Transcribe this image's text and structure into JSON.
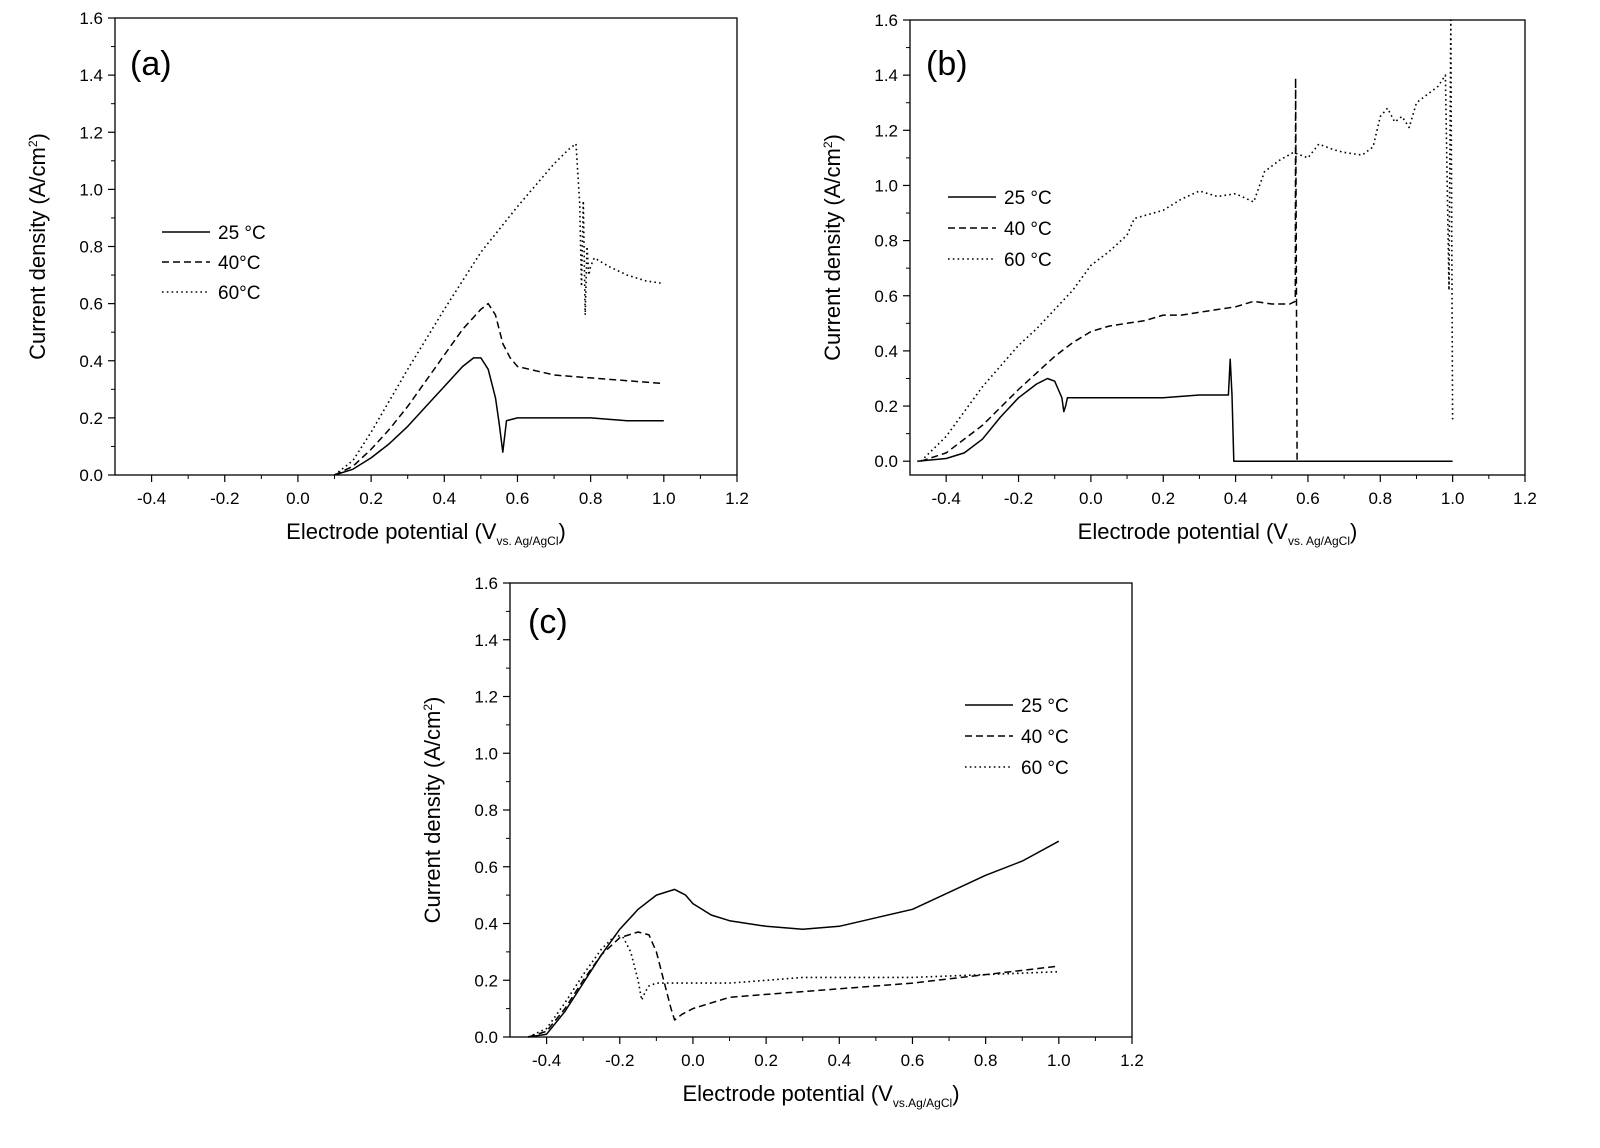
{
  "chart_data": [
    {
      "type": "line",
      "panel_label": "(a)",
      "xlabel": {
        "main": "Electrode potential (V",
        "sub": "vs. Ag/AgCl",
        "tail": ")"
      },
      "ylabel": {
        "main": "Current density (A/cm",
        "sup": "2",
        "tail": ")"
      },
      "xlim": [
        -0.5,
        1.2
      ],
      "ylim": [
        0,
        1.6
      ],
      "xticks": [
        "-0.4",
        "-0.2",
        "0.0",
        "0.2",
        "0.4",
        "0.6",
        "0.8",
        "1.0",
        "1.2"
      ],
      "yticks": [
        "0.0",
        "0.2",
        "0.4",
        "0.6",
        "0.8",
        "1.0",
        "1.2",
        "1.4",
        "1.6"
      ],
      "legend_position": "middle-left",
      "grid": false,
      "series": [
        {
          "name": "25 °C",
          "style": "solid",
          "x": [
            0.1,
            0.15,
            0.2,
            0.25,
            0.3,
            0.35,
            0.4,
            0.45,
            0.48,
            0.5,
            0.52,
            0.54,
            0.55,
            0.56,
            0.57,
            0.6,
            0.7,
            0.8,
            0.9,
            1.0
          ],
          "y": [
            0.0,
            0.02,
            0.06,
            0.11,
            0.17,
            0.24,
            0.31,
            0.38,
            0.41,
            0.41,
            0.37,
            0.27,
            0.18,
            0.08,
            0.19,
            0.2,
            0.2,
            0.2,
            0.19,
            0.19
          ]
        },
        {
          "name": "40°C",
          "style": "dashed",
          "x": [
            0.1,
            0.15,
            0.2,
            0.25,
            0.3,
            0.35,
            0.4,
            0.45,
            0.5,
            0.52,
            0.54,
            0.56,
            0.58,
            0.6,
            0.7,
            0.8,
            0.9,
            1.0
          ],
          "y": [
            0.0,
            0.03,
            0.09,
            0.16,
            0.24,
            0.33,
            0.42,
            0.51,
            0.58,
            0.6,
            0.56,
            0.46,
            0.41,
            0.38,
            0.35,
            0.34,
            0.33,
            0.32
          ]
        },
        {
          "name": "60°C",
          "style": "dotted",
          "x": [
            0.1,
            0.15,
            0.2,
            0.3,
            0.4,
            0.5,
            0.6,
            0.7,
            0.74,
            0.76,
            0.77,
            0.775,
            0.78,
            0.785,
            0.79,
            0.795,
            0.8,
            0.81,
            0.85,
            0.9,
            0.95,
            1.0
          ],
          "y": [
            0.0,
            0.05,
            0.15,
            0.37,
            0.58,
            0.78,
            0.94,
            1.09,
            1.14,
            1.16,
            0.95,
            0.66,
            0.96,
            0.56,
            0.8,
            0.7,
            0.73,
            0.76,
            0.73,
            0.7,
            0.68,
            0.67
          ]
        }
      ]
    },
    {
      "type": "line",
      "panel_label": "(b)",
      "xlabel": {
        "main": "Electrode potential (V",
        "sub": "vs. Ag/AgCl",
        "tail": ")"
      },
      "ylabel": {
        "main": "Current density (A/cm",
        "sup": "2",
        "tail": ")"
      },
      "xlim": [
        -0.5,
        1.2
      ],
      "ylim": [
        -0.05,
        1.6
      ],
      "xticks": [
        "-0.4",
        "-0.2",
        "0.0",
        "0.2",
        "0.4",
        "0.6",
        "0.8",
        "1.0",
        "1.2"
      ],
      "yticks": [
        "0.0",
        "0.2",
        "0.4",
        "0.6",
        "0.8",
        "1.0",
        "1.2",
        "1.4",
        "1.6"
      ],
      "legend_position": "middle-left",
      "grid": false,
      "series": [
        {
          "name": "25 °C",
          "style": "solid",
          "x": [
            -0.48,
            -0.4,
            -0.35,
            -0.3,
            -0.25,
            -0.2,
            -0.15,
            -0.12,
            -0.1,
            -0.09,
            -0.08,
            -0.075,
            -0.07,
            -0.065,
            -0.06,
            0.0,
            0.1,
            0.2,
            0.3,
            0.38,
            0.385,
            0.39,
            0.395,
            0.4,
            0.6,
            0.8,
            1.0
          ],
          "y": [
            0.0,
            0.01,
            0.03,
            0.08,
            0.16,
            0.23,
            0.28,
            0.3,
            0.29,
            0.26,
            0.23,
            0.18,
            0.2,
            0.23,
            0.23,
            0.23,
            0.23,
            0.23,
            0.24,
            0.24,
            0.37,
            0.24,
            0.0,
            0.0,
            0.0,
            0.0,
            0.0
          ]
        },
        {
          "name": "40 °C",
          "style": "dashed",
          "x": [
            -0.47,
            -0.4,
            -0.3,
            -0.2,
            -0.1,
            -0.05,
            0.0,
            0.05,
            0.1,
            0.15,
            0.2,
            0.25,
            0.3,
            0.35,
            0.4,
            0.45,
            0.5,
            0.55,
            0.565,
            0.566,
            0.57,
            0.575,
            0.58,
            0.6
          ],
          "y": [
            0.0,
            0.03,
            0.13,
            0.26,
            0.38,
            0.43,
            0.47,
            0.49,
            0.5,
            0.51,
            0.53,
            0.53,
            0.54,
            0.55,
            0.56,
            0.58,
            0.57,
            0.57,
            0.58,
            1.39,
            0.0,
            0.0,
            0.0,
            0.0
          ]
        },
        {
          "name": "60 °C",
          "style": "dotted",
          "x": [
            -0.47,
            -0.4,
            -0.3,
            -0.2,
            -0.15,
            -0.1,
            -0.05,
            0.0,
            0.05,
            0.1,
            0.12,
            0.2,
            0.25,
            0.3,
            0.35,
            0.4,
            0.45,
            0.48,
            0.52,
            0.56,
            0.6,
            0.63,
            0.67,
            0.7,
            0.75,
            0.78,
            0.8,
            0.82,
            0.84,
            0.86,
            0.88,
            0.9,
            0.93,
            0.96,
            0.98,
            0.99,
            0.995,
            1.0
          ],
          "y": [
            0.0,
            0.09,
            0.27,
            0.42,
            0.48,
            0.55,
            0.62,
            0.71,
            0.76,
            0.82,
            0.88,
            0.91,
            0.95,
            0.98,
            0.96,
            0.97,
            0.94,
            1.05,
            1.09,
            1.12,
            1.1,
            1.15,
            1.13,
            1.12,
            1.11,
            1.14,
            1.25,
            1.28,
            1.23,
            1.25,
            1.21,
            1.3,
            1.33,
            1.36,
            1.4,
            0.62,
            1.6,
            0.15
          ]
        }
      ]
    },
    {
      "type": "line",
      "panel_label": "(c)",
      "xlabel": {
        "main": "Electrode potential (V",
        "sub": "vs.Ag/AgCl",
        "tail": ")"
      },
      "ylabel": {
        "main": "Current density (A/cm",
        "sup": "2",
        "tail": ")"
      },
      "xlim": [
        -0.5,
        1.2
      ],
      "ylim": [
        0,
        1.6
      ],
      "xticks": [
        "-0.4",
        "-0.2",
        "0.0",
        "0.2",
        "0.4",
        "0.6",
        "0.8",
        "1.0",
        "1.2"
      ],
      "yticks": [
        "0.0",
        "0.2",
        "0.4",
        "0.6",
        "0.8",
        "1.0",
        "1.2",
        "1.4",
        "1.6"
      ],
      "legend_position": "top-right",
      "grid": false,
      "series": [
        {
          "name": "25 °C",
          "style": "solid",
          "x": [
            -0.45,
            -0.4,
            -0.35,
            -0.3,
            -0.25,
            -0.2,
            -0.15,
            -0.1,
            -0.05,
            -0.02,
            0.0,
            0.05,
            0.1,
            0.2,
            0.3,
            0.4,
            0.5,
            0.6,
            0.7,
            0.8,
            0.9,
            1.0
          ],
          "y": [
            0.0,
            0.01,
            0.09,
            0.19,
            0.29,
            0.38,
            0.45,
            0.5,
            0.52,
            0.5,
            0.47,
            0.43,
            0.41,
            0.39,
            0.38,
            0.39,
            0.42,
            0.45,
            0.51,
            0.57,
            0.62,
            0.69
          ]
        },
        {
          "name": "40 °C",
          "style": "dashed",
          "x": [
            -0.45,
            -0.4,
            -0.35,
            -0.3,
            -0.25,
            -0.2,
            -0.15,
            -0.12,
            -0.1,
            -0.08,
            -0.06,
            -0.05,
            -0.03,
            0.0,
            0.1,
            0.2,
            0.3,
            0.4,
            0.6,
            0.8,
            1.0
          ],
          "y": [
            0.0,
            0.02,
            0.1,
            0.2,
            0.29,
            0.35,
            0.37,
            0.36,
            0.3,
            0.2,
            0.1,
            0.06,
            0.08,
            0.1,
            0.14,
            0.15,
            0.16,
            0.17,
            0.19,
            0.22,
            0.25
          ]
        },
        {
          "name": "60 °C",
          "style": "dotted",
          "x": [
            -0.45,
            -0.4,
            -0.35,
            -0.3,
            -0.25,
            -0.21,
            -0.19,
            -0.17,
            -0.15,
            -0.14,
            -0.13,
            -0.12,
            -0.1,
            -0.05,
            0.0,
            0.1,
            0.2,
            0.3,
            0.4,
            0.6,
            0.8,
            1.0
          ],
          "y": [
            0.0,
            0.03,
            0.12,
            0.22,
            0.31,
            0.36,
            0.35,
            0.3,
            0.2,
            0.13,
            0.16,
            0.18,
            0.19,
            0.19,
            0.19,
            0.19,
            0.2,
            0.21,
            0.21,
            0.21,
            0.22,
            0.23
          ]
        }
      ]
    }
  ]
}
